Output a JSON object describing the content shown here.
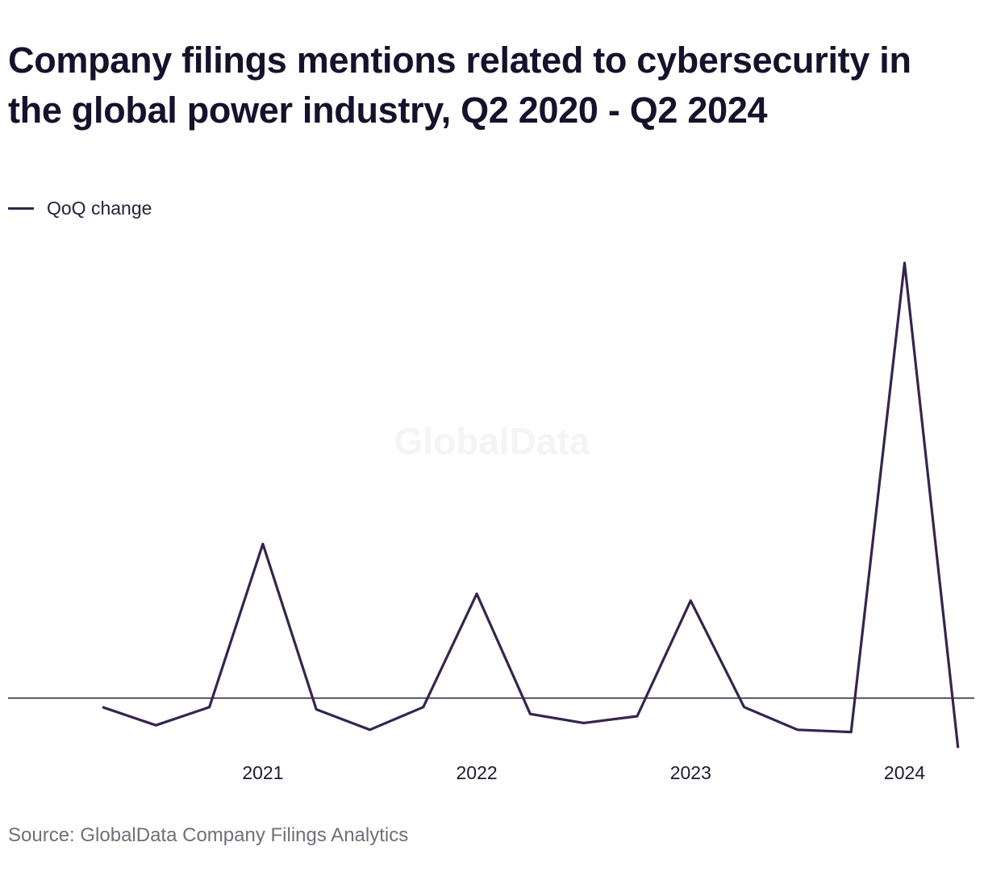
{
  "title": "Company filings mentions related to cybersecurity in the global power industry, Q2 2020 - Q2 2024",
  "watermark": "GlobalData",
  "source": "Source: GlobalData Company Filings Analytics",
  "chart_data": {
    "type": "line",
    "x": [
      "Q2 2020",
      "Q3 2020",
      "Q4 2020",
      "Q1 2021",
      "Q2 2021",
      "Q3 2021",
      "Q4 2021",
      "Q1 2022",
      "Q2 2022",
      "Q3 2022",
      "Q4 2022",
      "Q1 2023",
      "Q2 2023",
      "Q3 2023",
      "Q4 2023",
      "Q1 2024",
      "Q2 2024"
    ],
    "series": [
      {
        "name": "QoQ change",
        "color": "#36244f",
        "values": [
          -0.02,
          -0.06,
          -0.02,
          0.34,
          -0.025,
          -0.07,
          -0.02,
          0.23,
          -0.035,
          -0.055,
          -0.04,
          0.215,
          -0.02,
          -0.07,
          -0.075,
          0.96,
          -0.11
        ]
      }
    ],
    "x_tick_labels": [
      "2021",
      "2022",
      "2023",
      "2024"
    ],
    "x_tick_positions": [
      "Q1 2021",
      "Q1 2022",
      "Q1 2023",
      "Q1 2024"
    ],
    "ylim": [
      -0.16,
      1.05
    ],
    "zero_line": true,
    "y_axis_labels_shown": false,
    "grid": false,
    "legend_position": "top-left"
  }
}
